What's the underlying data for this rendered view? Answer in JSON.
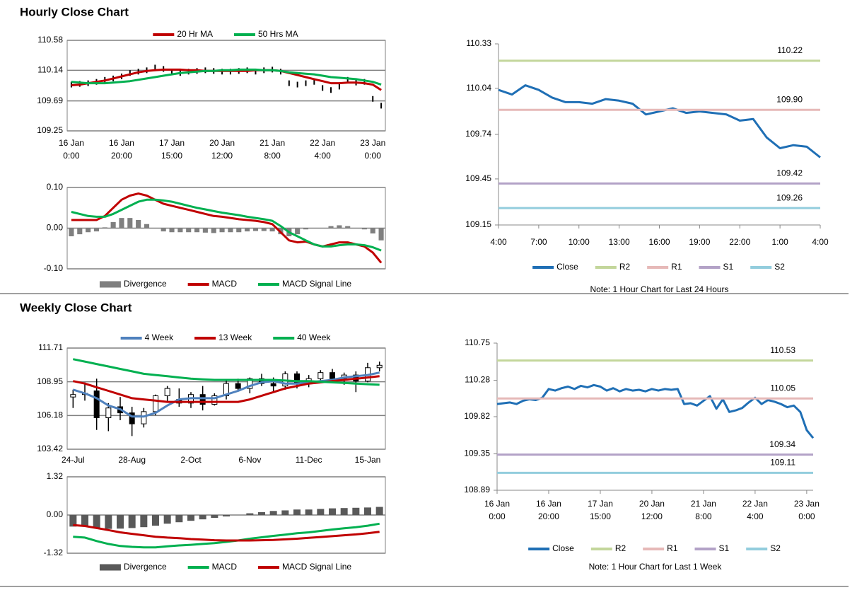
{
  "sections": [
    {
      "title": "Hourly Close Chart"
    },
    {
      "title": "Weekly Close Chart"
    }
  ],
  "chart_data": [
    {
      "type": "price",
      "ylim": [
        109.25,
        110.58
      ],
      "yticks": [
        109.25,
        109.69,
        110.14,
        110.58
      ],
      "grid": true,
      "legend": "top",
      "categories": [
        [
          "16 Jan",
          "0:00"
        ],
        null,
        null,
        null,
        null,
        null,
        [
          "16 Jan",
          "20:00"
        ],
        null,
        null,
        null,
        null,
        null,
        [
          "17 Jan",
          "15:00"
        ],
        null,
        null,
        null,
        null,
        null,
        [
          "20 Jan",
          "12:00"
        ],
        null,
        null,
        null,
        null,
        null,
        [
          "21 Jan",
          "8:00"
        ],
        null,
        null,
        null,
        null,
        null,
        [
          "22 Jan",
          "4:00"
        ],
        null,
        null,
        null,
        null,
        null,
        [
          "23 Jan",
          "0:00"
        ],
        null
      ],
      "values": [
        109.93,
        109.94,
        109.95,
        109.97,
        110.0,
        110.02,
        110.05,
        110.1,
        110.12,
        110.14,
        110.18,
        110.16,
        110.12,
        110.1,
        110.12,
        110.13,
        110.14,
        110.13,
        110.12,
        110.12,
        110.13,
        110.14,
        110.12,
        110.14,
        110.15,
        110.12,
        109.95,
        109.93,
        109.95,
        109.97,
        109.88,
        109.85,
        109.9,
        110.0,
        109.96,
        109.97,
        109.72,
        109.62
      ],
      "series": [
        {
          "name": "20 Hr MA",
          "color": "#c00000",
          "values": [
            109.92,
            109.93,
            109.95,
            109.97,
            109.99,
            110.02,
            110.05,
            110.08,
            110.11,
            110.13,
            110.14,
            110.15,
            110.15,
            110.15,
            110.14,
            110.14,
            110.13,
            110.13,
            110.13,
            110.13,
            110.13,
            110.13,
            110.14,
            110.14,
            110.14,
            110.13,
            110.1,
            110.07,
            110.04,
            110.01,
            109.98,
            109.95,
            109.95,
            109.96,
            109.96,
            109.95,
            109.93,
            109.85
          ]
        },
        {
          "name": "50 Hrs MA",
          "color": "#00b050",
          "values": [
            109.97,
            109.96,
            109.95,
            109.95,
            109.95,
            109.96,
            109.97,
            109.98,
            110.0,
            110.02,
            110.04,
            110.06,
            110.08,
            110.1,
            110.11,
            110.12,
            110.13,
            110.13,
            110.14,
            110.14,
            110.15,
            110.15,
            110.15,
            110.14,
            110.14,
            110.13,
            110.11,
            110.1,
            110.09,
            110.08,
            110.06,
            110.04,
            110.03,
            110.02,
            110.01,
            109.99,
            109.97,
            109.93
          ]
        }
      ]
    },
    {
      "type": "macd",
      "ylim": [
        -0.1,
        0.1
      ],
      "yticks": [
        {
          "value": -0.1,
          "label": "-0.10"
        },
        {
          "value": 0,
          "label": "0.00"
        },
        {
          "value": 0.1,
          "label": "0.10"
        }
      ],
      "grid": true,
      "legend": "bottom",
      "series": [
        {
          "name": "Divergence",
          "color": "#7f7f7f",
          "mark": "bar",
          "values": [
            -0.02,
            -0.015,
            -0.01,
            -0.008,
            0.002,
            0.015,
            0.025,
            0.025,
            0.02,
            0.01,
            0,
            -0.008,
            -0.01,
            -0.01,
            -0.01,
            -0.01,
            -0.011,
            -0.012,
            -0.01,
            -0.01,
            -0.01,
            -0.008,
            -0.007,
            -0.007,
            -0.008,
            -0.015,
            -0.02,
            -0.015,
            -0.003,
            0,
            0,
            0.005,
            0.007,
            0.005,
            0,
            -0.003,
            -0.013,
            -0.03
          ]
        },
        {
          "name": "MACD",
          "color": "#c00000",
          "values": [
            0.02,
            0.02,
            0.02,
            0.02,
            0.03,
            0.05,
            0.07,
            0.08,
            0.085,
            0.08,
            0.07,
            0.06,
            0.055,
            0.05,
            0.045,
            0.04,
            0.035,
            0.03,
            0.028,
            0.025,
            0.022,
            0.02,
            0.018,
            0.015,
            0.01,
            -0.01,
            -0.03,
            -0.035,
            -0.033,
            -0.04,
            -0.045,
            -0.04,
            -0.035,
            -0.035,
            -0.04,
            -0.045,
            -0.06,
            -0.085
          ]
        },
        {
          "name": "MACD Signal Line",
          "color": "#00b050",
          "values": [
            0.04,
            0.035,
            0.03,
            0.028,
            0.028,
            0.035,
            0.045,
            0.055,
            0.065,
            0.07,
            0.07,
            0.068,
            0.065,
            0.06,
            0.055,
            0.05,
            0.046,
            0.042,
            0.038,
            0.035,
            0.032,
            0.028,
            0.025,
            0.022,
            0.018,
            0.005,
            -0.01,
            -0.02,
            -0.03,
            -0.04,
            -0.045,
            -0.045,
            -0.042,
            -0.04,
            -0.04,
            -0.042,
            -0.047,
            -0.055
          ]
        }
      ]
    },
    {
      "type": "pivot",
      "ylim": [
        109.15,
        110.33
      ],
      "yticks": [
        109.15,
        109.45,
        109.74,
        110.04,
        110.33
      ],
      "grid": false,
      "legend": "bottom",
      "note": "Note: 1 Hour Chart for Last 24 Hours",
      "categories": [
        "4:00",
        null,
        null,
        "7:00",
        null,
        null,
        "10:00",
        null,
        null,
        "13:00",
        null,
        null,
        "16:00",
        null,
        null,
        "19:00",
        null,
        null,
        "22:00",
        null,
        null,
        "1:00",
        null,
        null,
        "4:00"
      ],
      "series": [
        {
          "name": "Close",
          "color": "#1f6fb5",
          "values": [
            110.03,
            110.0,
            110.06,
            110.03,
            109.98,
            109.95,
            109.95,
            109.94,
            109.97,
            109.96,
            109.94,
            109.87,
            109.89,
            109.91,
            109.88,
            109.89,
            109.88,
            109.87,
            109.83,
            109.84,
            109.72,
            109.65,
            109.67,
            109.66,
            109.59
          ]
        },
        {
          "name": "R2",
          "color": "#c3d69b",
          "value": 110.22
        },
        {
          "name": "R1",
          "color": "#e6b9b8",
          "value": 109.9,
          "value_label": "109.90"
        },
        {
          "name": "S1",
          "color": "#b3a2c7",
          "value": 109.42
        },
        {
          "name": "S2",
          "color": "#93cddd",
          "value": 109.26
        }
      ]
    },
    {
      "type": "candlestick",
      "ylim": [
        103.42,
        111.71
      ],
      "yticks": [
        103.42,
        106.18,
        108.95,
        111.71
      ],
      "grid": true,
      "legend": "top",
      "categories": [
        "24-Jul",
        null,
        null,
        null,
        null,
        "28-Aug",
        null,
        null,
        null,
        null,
        "2-Oct",
        null,
        null,
        null,
        null,
        "6-Nov",
        null,
        null,
        null,
        null,
        "11-Dec",
        null,
        null,
        null,
        null,
        "15-Jan",
        null
      ],
      "candles": [
        {
          "open": 107.7,
          "high": 108.3,
          "low": 106.8,
          "close": 107.9
        },
        {
          "open": 107.9,
          "high": 108.9,
          "low": 107.4,
          "close": 108.0
        },
        {
          "open": 108.2,
          "high": 109.2,
          "low": 105.0,
          "close": 106.0
        },
        {
          "open": 106.0,
          "high": 107.2,
          "low": 104.9,
          "close": 106.8
        },
        {
          "open": 106.9,
          "high": 107.7,
          "low": 105.8,
          "close": 106.4
        },
        {
          "open": 106.4,
          "high": 106.9,
          "low": 104.5,
          "close": 105.5
        },
        {
          "open": 105.5,
          "high": 106.8,
          "low": 105.2,
          "close": 106.5
        },
        {
          "open": 106.5,
          "high": 107.9,
          "low": 106.2,
          "close": 107.8
        },
        {
          "open": 107.8,
          "high": 108.6,
          "low": 107.3,
          "close": 108.4
        },
        {
          "open": 107.5,
          "high": 108.4,
          "low": 106.9,
          "close": 107.2
        },
        {
          "open": 107.2,
          "high": 108.1,
          "low": 106.8,
          "close": 107.9
        },
        {
          "open": 107.9,
          "high": 108.6,
          "low": 106.6,
          "close": 107.1
        },
        {
          "open": 107.1,
          "high": 108.0,
          "low": 107.0,
          "close": 107.8
        },
        {
          "open": 107.8,
          "high": 109.1,
          "low": 107.5,
          "close": 108.8
        },
        {
          "open": 108.8,
          "high": 109.2,
          "low": 108.2,
          "close": 108.4
        },
        {
          "open": 108.4,
          "high": 109.3,
          "low": 108.0,
          "close": 109.2
        },
        {
          "open": 109.2,
          "high": 109.6,
          "low": 108.6,
          "close": 108.8
        },
        {
          "open": 108.8,
          "high": 109.3,
          "low": 108.1,
          "close": 108.6
        },
        {
          "open": 108.6,
          "high": 109.8,
          "low": 108.3,
          "close": 109.6
        },
        {
          "open": 109.6,
          "high": 109.8,
          "low": 108.4,
          "close": 108.8
        },
        {
          "open": 108.8,
          "high": 109.5,
          "low": 108.5,
          "close": 109.2
        },
        {
          "open": 109.2,
          "high": 109.9,
          "low": 108.9,
          "close": 109.7
        },
        {
          "open": 109.7,
          "high": 110.0,
          "low": 108.9,
          "close": 109.2
        },
        {
          "open": 109.2,
          "high": 109.7,
          "low": 108.7,
          "close": 109.5
        },
        {
          "open": 109.5,
          "high": 109.8,
          "low": 108.1,
          "close": 109.0
        },
        {
          "open": 109.0,
          "high": 110.5,
          "low": 108.9,
          "close": 110.1
        },
        {
          "open": 110.1,
          "high": 110.6,
          "low": 109.8,
          "close": 110.3
        }
      ],
      "series": [
        {
          "name": "4 Week",
          "color": "#4f81bd",
          "values": [
            108.3,
            108.0,
            107.6,
            107.0,
            106.7,
            106.1,
            106.1,
            106.4,
            107.0,
            107.5,
            107.6,
            107.6,
            107.6,
            107.9,
            108.2,
            108.6,
            108.9,
            109.0,
            108.8,
            108.8,
            108.9,
            109.0,
            109.1,
            109.3,
            109.4,
            109.5,
            109.7
          ]
        },
        {
          "name": "13 Week",
          "color": "#c00000",
          "values": [
            109.0,
            108.8,
            108.5,
            108.2,
            107.9,
            107.6,
            107.5,
            107.4,
            107.3,
            107.3,
            107.3,
            107.3,
            107.3,
            107.3,
            107.3,
            107.5,
            107.8,
            108.1,
            108.4,
            108.6,
            108.8,
            108.9,
            109.0,
            109.1,
            109.2,
            109.3,
            109.4
          ]
        },
        {
          "name": "40 Week",
          "color": "#00b050",
          "values": [
            110.8,
            110.6,
            110.4,
            110.2,
            110.0,
            109.8,
            109.6,
            109.5,
            109.4,
            109.3,
            109.2,
            109.15,
            109.1,
            109.1,
            109.1,
            109.1,
            109.1,
            109.1,
            109.05,
            109.0,
            109.0,
            108.95,
            108.9,
            108.85,
            108.8,
            108.75,
            108.7
          ]
        }
      ]
    },
    {
      "type": "macd",
      "ylim": [
        -1.32,
        1.32
      ],
      "yticks": [
        {
          "value": -1.32,
          "label": "-1.32"
        },
        {
          "value": 0,
          "label": "0.00"
        },
        1.32
      ],
      "grid": true,
      "legend": "bottom",
      "series": [
        {
          "name": "Divergence",
          "color": "#595959",
          "mark": "bar",
          "values": [
            -0.4,
            -0.4,
            -0.45,
            -0.48,
            -0.47,
            -0.45,
            -0.42,
            -0.37,
            -0.3,
            -0.25,
            -0.2,
            -0.15,
            -0.1,
            -0.05,
            0,
            0.06,
            0.1,
            0.14,
            0.16,
            0.19,
            0.19,
            0.21,
            0.23,
            0.24,
            0.25,
            0.26,
            0.28
          ]
        },
        {
          "name": "MACD",
          "color": "#00b050",
          "values": [
            -0.75,
            -0.78,
            -0.9,
            -1.0,
            -1.07,
            -1.1,
            -1.12,
            -1.12,
            -1.08,
            -1.05,
            -1.03,
            -1.0,
            -0.97,
            -0.93,
            -0.88,
            -0.82,
            -0.77,
            -0.72,
            -0.68,
            -0.63,
            -0.6,
            -0.55,
            -0.5,
            -0.46,
            -0.42,
            -0.37,
            -0.3
          ]
        },
        {
          "name": "MACD Signal Line",
          "color": "#c00000",
          "values": [
            -0.35,
            -0.38,
            -0.45,
            -0.52,
            -0.6,
            -0.65,
            -0.7,
            -0.75,
            -0.78,
            -0.8,
            -0.83,
            -0.85,
            -0.87,
            -0.88,
            -0.88,
            -0.88,
            -0.87,
            -0.86,
            -0.84,
            -0.82,
            -0.79,
            -0.76,
            -0.73,
            -0.7,
            -0.67,
            -0.63,
            -0.58
          ]
        }
      ]
    },
    {
      "type": "pivot",
      "ylim": [
        108.89,
        110.75
      ],
      "yticks": [
        108.89,
        109.35,
        109.82,
        110.28,
        110.75
      ],
      "grid": false,
      "legend": "bottom",
      "note": "Note: 1 Hour Chart for Last 1 Week",
      "categories": [
        [
          "16 Jan",
          "0:00"
        ],
        null,
        null,
        null,
        null,
        null,
        null,
        null,
        [
          "16 Jan",
          "20:00"
        ],
        null,
        null,
        null,
        null,
        null,
        null,
        null,
        [
          "17 Jan",
          "15:00"
        ],
        null,
        null,
        null,
        null,
        null,
        null,
        null,
        [
          "20 Jan",
          "12:00"
        ],
        null,
        null,
        null,
        null,
        null,
        null,
        null,
        [
          "21 Jan",
          "8:00"
        ],
        null,
        null,
        null,
        null,
        null,
        null,
        null,
        [
          "22 Jan",
          "4:00"
        ],
        null,
        null,
        null,
        null,
        null,
        null,
        null,
        [
          "23 Jan",
          "0:00"
        ],
        null
      ],
      "series": [
        {
          "name": "Close",
          "color": "#1f6fb5",
          "values": [
            109.98,
            109.99,
            110.0,
            109.98,
            110.02,
            110.04,
            110.03,
            110.06,
            110.17,
            110.15,
            110.18,
            110.2,
            110.17,
            110.21,
            110.19,
            110.22,
            110.2,
            110.15,
            110.18,
            110.14,
            110.17,
            110.15,
            110.16,
            110.14,
            110.17,
            110.15,
            110.17,
            110.16,
            110.17,
            109.98,
            109.99,
            109.96,
            110.02,
            110.08,
            109.92,
            110.04,
            109.88,
            109.9,
            109.93,
            110.0,
            110.06,
            109.98,
            110.03,
            110.01,
            109.98,
            109.94,
            109.96,
            109.88,
            109.65,
            109.55
          ]
        },
        {
          "name": "R2",
          "color": "#c3d69b",
          "value": 110.53
        },
        {
          "name": "R1",
          "color": "#e6b9b8",
          "value": 110.05
        },
        {
          "name": "S1",
          "color": "#b3a2c7",
          "value": 109.34
        },
        {
          "name": "S2",
          "color": "#93cddd",
          "value": 109.11
        }
      ]
    }
  ]
}
